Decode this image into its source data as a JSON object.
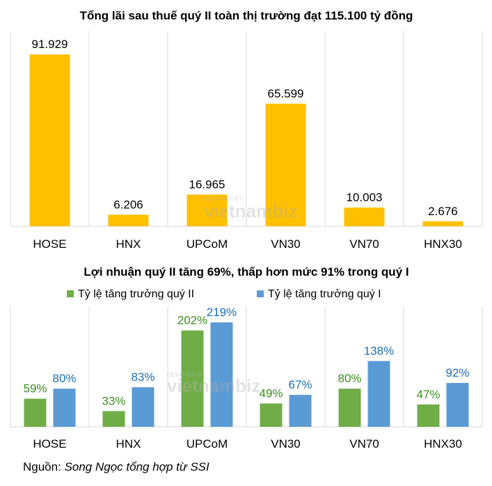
{
  "chart_data": [
    {
      "type": "bar",
      "title": "Tổng lãi sau thuế quý II toàn thị trường đạt 115.100 tỷ đồng",
      "categories": [
        "HOSE",
        "HNX",
        "UPCoM",
        "VN30",
        "VN70",
        "HNX30"
      ],
      "values": [
        91.929,
        6.206,
        16.965,
        65.599,
        10.003,
        2.676
      ],
      "value_labels": [
        "91.929",
        "6.206",
        "16.965",
        "65.599",
        "10.003",
        "2.676"
      ],
      "color": "#FFC000",
      "ylim": [
        0,
        92
      ],
      "grid": "vertical separators"
    },
    {
      "type": "bar",
      "title": "Lợi nhuận quý II tăng 69%, thấp hơn mức 91% trong quý I",
      "categories": [
        "HOSE",
        "HNX",
        "UPCoM",
        "VN30",
        "VN70",
        "HNX30"
      ],
      "series": [
        {
          "name": "Tỷ lệ tăng trưởng quý II",
          "values": [
            59,
            33,
            202,
            49,
            80,
            47
          ],
          "value_labels": [
            "59%",
            "33%",
            "202%",
            "49%",
            "80%",
            "47%"
          ],
          "color": "#70AD47",
          "label_color": "#3A8F1E"
        },
        {
          "name": "Tỷ lệ tăng trưởng quý I",
          "values": [
            80,
            83,
            219,
            67,
            138,
            92
          ],
          "value_labels": [
            "80%",
            "83%",
            "219%",
            "67%",
            "138%",
            "92%"
          ],
          "color": "#5B9BD5",
          "label_color": "#1F6FB5"
        }
      ],
      "ylim": [
        0,
        219
      ],
      "legend": "top-left",
      "grid": "vertical separators"
    }
  ],
  "source": {
    "label": "Nguồn:",
    "text": "Song Ngọc tổng hợp từ SSI"
  },
  "watermark": {
    "small": "DESIGNED BY",
    "brand": "vietnambiz"
  }
}
